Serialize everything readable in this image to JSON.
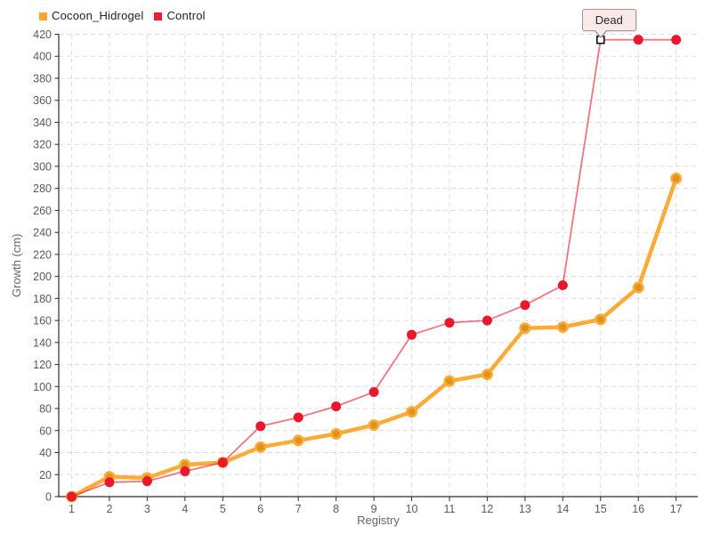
{
  "legend": {
    "items": [
      {
        "label": "Cocoon_Hidrogel",
        "color": "#FBA62A"
      },
      {
        "label": "Control",
        "color": "#ED1C2E"
      }
    ]
  },
  "colors": {
    "background": "#ffffff",
    "grid": "#dcdcdc",
    "axis": "#2b2b2b",
    "tick_label": "#5a5a5a",
    "axis_title": "#666666",
    "tooltip_bg": "#fbe9e9",
    "tooltip_border": "#999999"
  },
  "chart_data": {
    "type": "line",
    "title": "",
    "xlabel": "Registry",
    "ylabel": "Growth (cm)",
    "x": [
      1,
      2,
      3,
      4,
      5,
      6,
      7,
      8,
      9,
      10,
      11,
      12,
      13,
      14,
      15,
      16,
      17
    ],
    "ylim": [
      0,
      420
    ],
    "ytick_step": 20,
    "grid": true,
    "legend_position": "top-left",
    "series": [
      {
        "name": "Cocoon_Hidrogel",
        "color": "#FBAC38",
        "marker": "circle",
        "marker_fill": "#E0921C",
        "values": [
          0,
          18,
          17,
          29,
          31,
          45,
          51,
          57,
          65,
          77,
          105,
          111,
          153,
          154,
          161,
          190,
          289
        ]
      },
      {
        "name": "Control",
        "color": "#ED2939",
        "marker": "circle",
        "marker_fill": "#E8192C",
        "values": [
          0,
          13,
          14,
          23,
          31,
          64,
          72,
          82,
          95,
          147,
          158,
          160,
          174,
          192,
          415,
          415,
          415
        ]
      }
    ],
    "annotations": [
      {
        "text": "Dead",
        "series": "Control",
        "x": 15,
        "y": 415,
        "marker": "open-square"
      }
    ]
  }
}
